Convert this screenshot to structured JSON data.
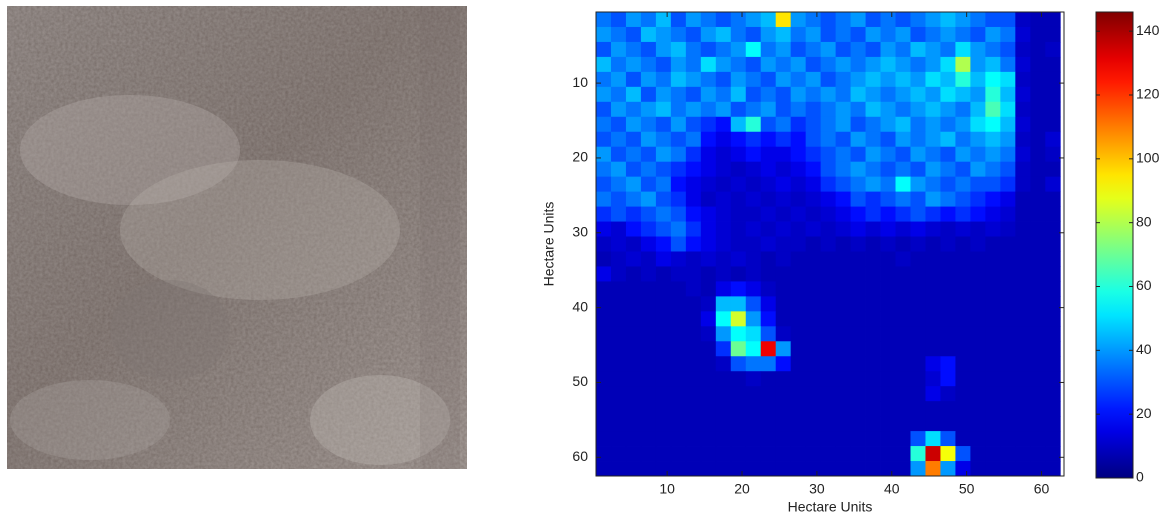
{
  "chart_data": {
    "type": "heatmap",
    "x": [
      1.5,
      3.5,
      5.5,
      7.5,
      9.5,
      11.5,
      13.5,
      15.5,
      17.5,
      19.5,
      21.5,
      23.5,
      25.5,
      27.5,
      29.5,
      31.5,
      33.5,
      35.5,
      37.5,
      39.5,
      41.5,
      43.5,
      45.5,
      47.5,
      49.5,
      51.5,
      53.5,
      55.5,
      57.5,
      59.5,
      61.5
    ],
    "y": [
      1.5,
      3.5,
      5.5,
      7.5,
      9.5,
      11.5,
      13.5,
      15.5,
      17.5,
      19.5,
      21.5,
      23.5,
      25.5,
      27.5,
      29.5,
      31.5,
      33.5,
      35.5,
      37.5,
      39.5,
      41.5,
      43.5,
      45.5,
      47.5,
      49.5,
      51.5,
      53.5,
      55.5,
      57.5,
      59.5,
      61.5
    ],
    "values": [
      [
        35,
        30,
        40,
        35,
        45,
        30,
        40,
        35,
        30,
        35,
        40,
        45,
        95,
        40,
        35,
        30,
        35,
        40,
        30,
        35,
        30,
        35,
        40,
        45,
        40,
        35,
        30,
        30,
        10,
        8,
        8
      ],
      [
        40,
        35,
        30,
        45,
        40,
        35,
        30,
        40,
        45,
        35,
        30,
        40,
        45,
        35,
        40,
        30,
        35,
        30,
        40,
        35,
        40,
        30,
        35,
        40,
        35,
        30,
        40,
        35,
        12,
        8,
        8
      ],
      [
        30,
        40,
        35,
        30,
        40,
        45,
        35,
        30,
        35,
        40,
        55,
        35,
        40,
        30,
        35,
        40,
        30,
        35,
        30,
        40,
        35,
        45,
        40,
        35,
        50,
        40,
        35,
        30,
        10,
        8,
        10
      ],
      [
        45,
        35,
        40,
        35,
        30,
        40,
        35,
        50,
        40,
        35,
        30,
        40,
        35,
        40,
        30,
        35,
        40,
        35,
        40,
        45,
        40,
        35,
        40,
        50,
        80,
        40,
        45,
        35,
        12,
        8,
        8
      ],
      [
        35,
        40,
        30,
        40,
        35,
        45,
        40,
        35,
        30,
        40,
        35,
        30,
        40,
        35,
        40,
        30,
        35,
        40,
        45,
        40,
        45,
        40,
        50,
        45,
        60,
        45,
        55,
        50,
        10,
        8,
        8
      ],
      [
        40,
        35,
        45,
        30,
        40,
        35,
        30,
        40,
        35,
        45,
        30,
        35,
        30,
        40,
        35,
        40,
        35,
        45,
        40,
        35,
        40,
        45,
        40,
        50,
        45,
        40,
        60,
        45,
        12,
        8,
        8
      ],
      [
        30,
        40,
        35,
        40,
        45,
        35,
        40,
        35,
        40,
        30,
        35,
        40,
        30,
        35,
        30,
        35,
        40,
        35,
        45,
        40,
        35,
        40,
        45,
        40,
        35,
        45,
        65,
        50,
        10,
        8,
        8
      ],
      [
        35,
        30,
        40,
        35,
        30,
        40,
        30,
        25,
        20,
        45,
        60,
        30,
        35,
        25,
        30,
        35,
        40,
        30,
        35,
        40,
        45,
        35,
        40,
        35,
        40,
        50,
        55,
        45,
        12,
        8,
        8
      ],
      [
        30,
        35,
        30,
        40,
        35,
        30,
        35,
        20,
        15,
        20,
        25,
        20,
        25,
        20,
        30,
        35,
        30,
        40,
        35,
        30,
        40,
        35,
        40,
        45,
        35,
        40,
        45,
        40,
        10,
        8,
        12
      ],
      [
        40,
        30,
        35,
        30,
        40,
        35,
        25,
        15,
        12,
        15,
        20,
        15,
        15,
        20,
        25,
        30,
        35,
        30,
        40,
        35,
        30,
        40,
        35,
        30,
        40,
        35,
        40,
        35,
        12,
        8,
        10
      ],
      [
        35,
        40,
        30,
        35,
        30,
        25,
        20,
        15,
        12,
        10,
        12,
        15,
        12,
        15,
        20,
        30,
        35,
        40,
        35,
        30,
        35,
        30,
        40,
        35,
        30,
        40,
        35,
        30,
        10,
        8,
        8
      ],
      [
        30,
        35,
        40,
        30,
        35,
        20,
        15,
        12,
        10,
        12,
        10,
        12,
        15,
        12,
        15,
        25,
        30,
        35,
        40,
        35,
        55,
        40,
        35,
        30,
        35,
        30,
        30,
        25,
        10,
        8,
        12
      ],
      [
        35,
        30,
        35,
        40,
        30,
        25,
        15,
        10,
        12,
        10,
        12,
        10,
        12,
        10,
        12,
        15,
        20,
        30,
        25,
        30,
        35,
        30,
        40,
        35,
        30,
        25,
        20,
        15,
        8,
        8,
        8
      ],
      [
        25,
        30,
        25,
        30,
        35,
        30,
        20,
        15,
        12,
        10,
        10,
        12,
        10,
        12,
        10,
        12,
        15,
        20,
        25,
        20,
        25,
        30,
        25,
        20,
        25,
        20,
        15,
        12,
        8,
        8,
        8
      ],
      [
        15,
        12,
        20,
        25,
        30,
        35,
        25,
        15,
        12,
        10,
        12,
        10,
        12,
        10,
        12,
        10,
        12,
        15,
        12,
        15,
        12,
        15,
        12,
        10,
        12,
        10,
        12,
        10,
        8,
        8,
        8
      ],
      [
        10,
        12,
        10,
        15,
        20,
        30,
        20,
        15,
        12,
        10,
        10,
        12,
        10,
        10,
        8,
        10,
        8,
        10,
        8,
        10,
        8,
        10,
        8,
        10,
        8,
        10,
        8,
        8,
        8,
        8,
        8
      ],
      [
        8,
        10,
        12,
        10,
        15,
        12,
        10,
        12,
        10,
        12,
        10,
        8,
        10,
        8,
        8,
        8,
        8,
        8,
        8,
        8,
        10,
        8,
        8,
        8,
        8,
        8,
        8,
        8,
        8,
        8,
        8
      ],
      [
        15,
        10,
        8,
        10,
        8,
        10,
        10,
        8,
        10,
        8,
        10,
        8,
        8,
        8,
        8,
        8,
        8,
        8,
        8,
        8,
        8,
        8,
        8,
        8,
        8,
        8,
        8,
        8,
        8,
        8,
        8
      ],
      [
        8,
        8,
        8,
        8,
        8,
        8,
        10,
        8,
        15,
        20,
        15,
        10,
        8,
        8,
        8,
        8,
        8,
        8,
        8,
        8,
        8,
        8,
        8,
        8,
        8,
        8,
        8,
        8,
        8,
        8,
        8
      ],
      [
        8,
        8,
        8,
        8,
        8,
        8,
        8,
        10,
        45,
        45,
        30,
        15,
        8,
        8,
        8,
        8,
        8,
        8,
        8,
        8,
        8,
        8,
        8,
        8,
        8,
        8,
        8,
        8,
        8,
        8,
        8
      ],
      [
        8,
        8,
        8,
        8,
        8,
        8,
        8,
        15,
        55,
        85,
        40,
        20,
        8,
        8,
        8,
        8,
        8,
        8,
        8,
        8,
        8,
        8,
        8,
        8,
        8,
        8,
        8,
        8,
        8,
        8,
        8
      ],
      [
        8,
        8,
        8,
        8,
        8,
        8,
        8,
        10,
        40,
        55,
        50,
        30,
        10,
        8,
        8,
        8,
        8,
        8,
        8,
        8,
        8,
        8,
        8,
        8,
        8,
        8,
        8,
        8,
        8,
        8,
        8
      ],
      [
        8,
        8,
        8,
        8,
        8,
        8,
        8,
        8,
        25,
        70,
        55,
        130,
        40,
        8,
        8,
        8,
        8,
        8,
        8,
        8,
        8,
        8,
        8,
        8,
        8,
        8,
        8,
        8,
        8,
        8,
        8
      ],
      [
        8,
        8,
        8,
        8,
        8,
        8,
        8,
        8,
        10,
        30,
        35,
        35,
        20,
        8,
        8,
        8,
        8,
        8,
        8,
        8,
        8,
        8,
        15,
        20,
        8,
        8,
        8,
        8,
        8,
        8,
        8
      ],
      [
        8,
        8,
        8,
        8,
        8,
        8,
        8,
        8,
        8,
        8,
        10,
        8,
        8,
        8,
        8,
        8,
        8,
        8,
        8,
        8,
        8,
        8,
        12,
        20,
        8,
        8,
        8,
        8,
        8,
        8,
        8
      ],
      [
        8,
        8,
        8,
        8,
        8,
        8,
        8,
        8,
        8,
        8,
        8,
        8,
        8,
        8,
        8,
        8,
        8,
        8,
        8,
        8,
        8,
        8,
        15,
        10,
        8,
        8,
        8,
        8,
        8,
        8,
        8
      ],
      [
        8,
        8,
        8,
        8,
        8,
        8,
        8,
        8,
        8,
        8,
        8,
        8,
        8,
        8,
        8,
        8,
        8,
        8,
        8,
        8,
        8,
        8,
        8,
        8,
        8,
        8,
        8,
        8,
        8,
        8,
        8
      ],
      [
        8,
        8,
        8,
        8,
        8,
        8,
        8,
        8,
        8,
        8,
        8,
        8,
        8,
        8,
        8,
        8,
        8,
        8,
        8,
        8,
        8,
        8,
        8,
        8,
        8,
        8,
        8,
        8,
        8,
        8,
        8
      ],
      [
        8,
        8,
        8,
        8,
        8,
        8,
        8,
        8,
        8,
        8,
        8,
        8,
        8,
        8,
        8,
        8,
        8,
        8,
        8,
        8,
        8,
        30,
        50,
        30,
        8,
        8,
        8,
        8,
        8,
        8,
        8
      ],
      [
        8,
        8,
        8,
        8,
        8,
        8,
        8,
        8,
        8,
        8,
        8,
        8,
        8,
        8,
        8,
        8,
        8,
        8,
        8,
        8,
        8,
        60,
        135,
        90,
        30,
        8,
        8,
        8,
        8,
        8,
        8
      ],
      [
        8,
        8,
        8,
        8,
        8,
        8,
        8,
        8,
        8,
        8,
        8,
        8,
        8,
        8,
        8,
        8,
        8,
        8,
        8,
        8,
        8,
        40,
        110,
        40,
        15,
        8,
        8,
        8,
        8,
        8,
        8
      ]
    ],
    "xlabel": "Hectare Units",
    "ylabel": "Hectare Units",
    "xlim": [
      0.5,
      63
    ],
    "ylim": [
      0.5,
      62.5
    ],
    "yreverse": true,
    "xticks": [
      10,
      20,
      30,
      40,
      50,
      60
    ],
    "yticks": [
      10,
      20,
      30,
      40,
      50,
      60
    ],
    "colormap": "jet",
    "clim": [
      0,
      146
    ],
    "cticks": [
      0,
      20,
      40,
      60,
      80,
      100,
      120,
      140
    ]
  }
}
